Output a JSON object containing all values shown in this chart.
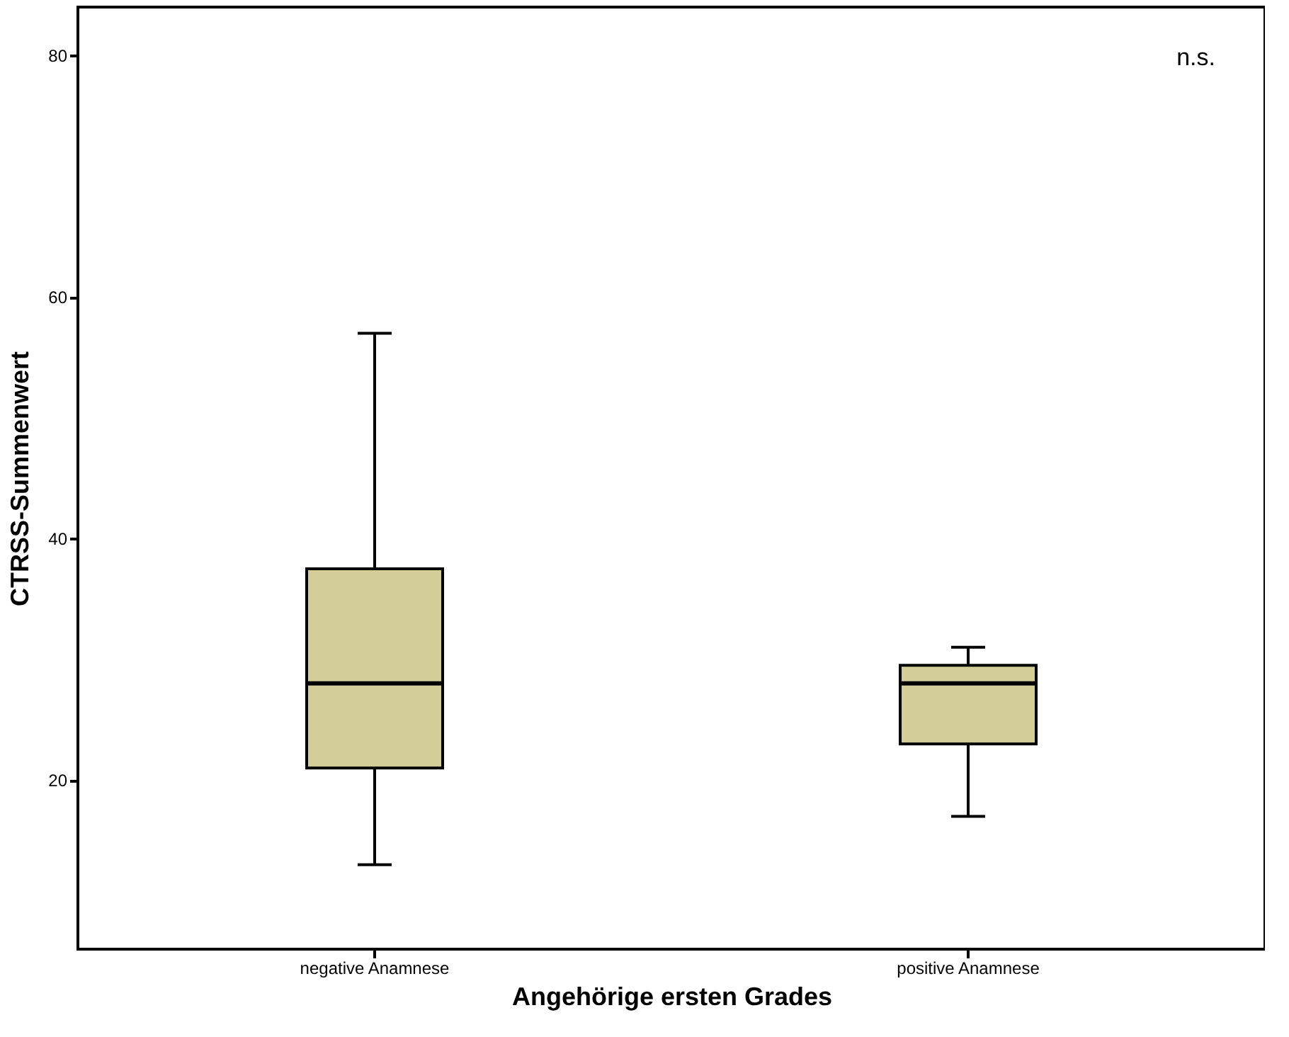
{
  "chart_data": {
    "type": "box",
    "xlabel": "Angehörige ersten Grades",
    "ylabel": "CTRSS-Summenwert",
    "categories": [
      "negative Anamnese",
      "positive Anamnese"
    ],
    "boxes": [
      {
        "low": 13,
        "q1": 21,
        "median": 28,
        "q3": 37.5,
        "high": 57
      },
      {
        "low": 17,
        "q1": 23,
        "median": 28,
        "q3": 29.5,
        "high": 31
      }
    ],
    "color": "#d3ce97",
    "ylim": [
      6,
      84
    ],
    "yticks": [
      20,
      40,
      60,
      80
    ],
    "grid": false,
    "annotations": [
      "n.s."
    ]
  }
}
